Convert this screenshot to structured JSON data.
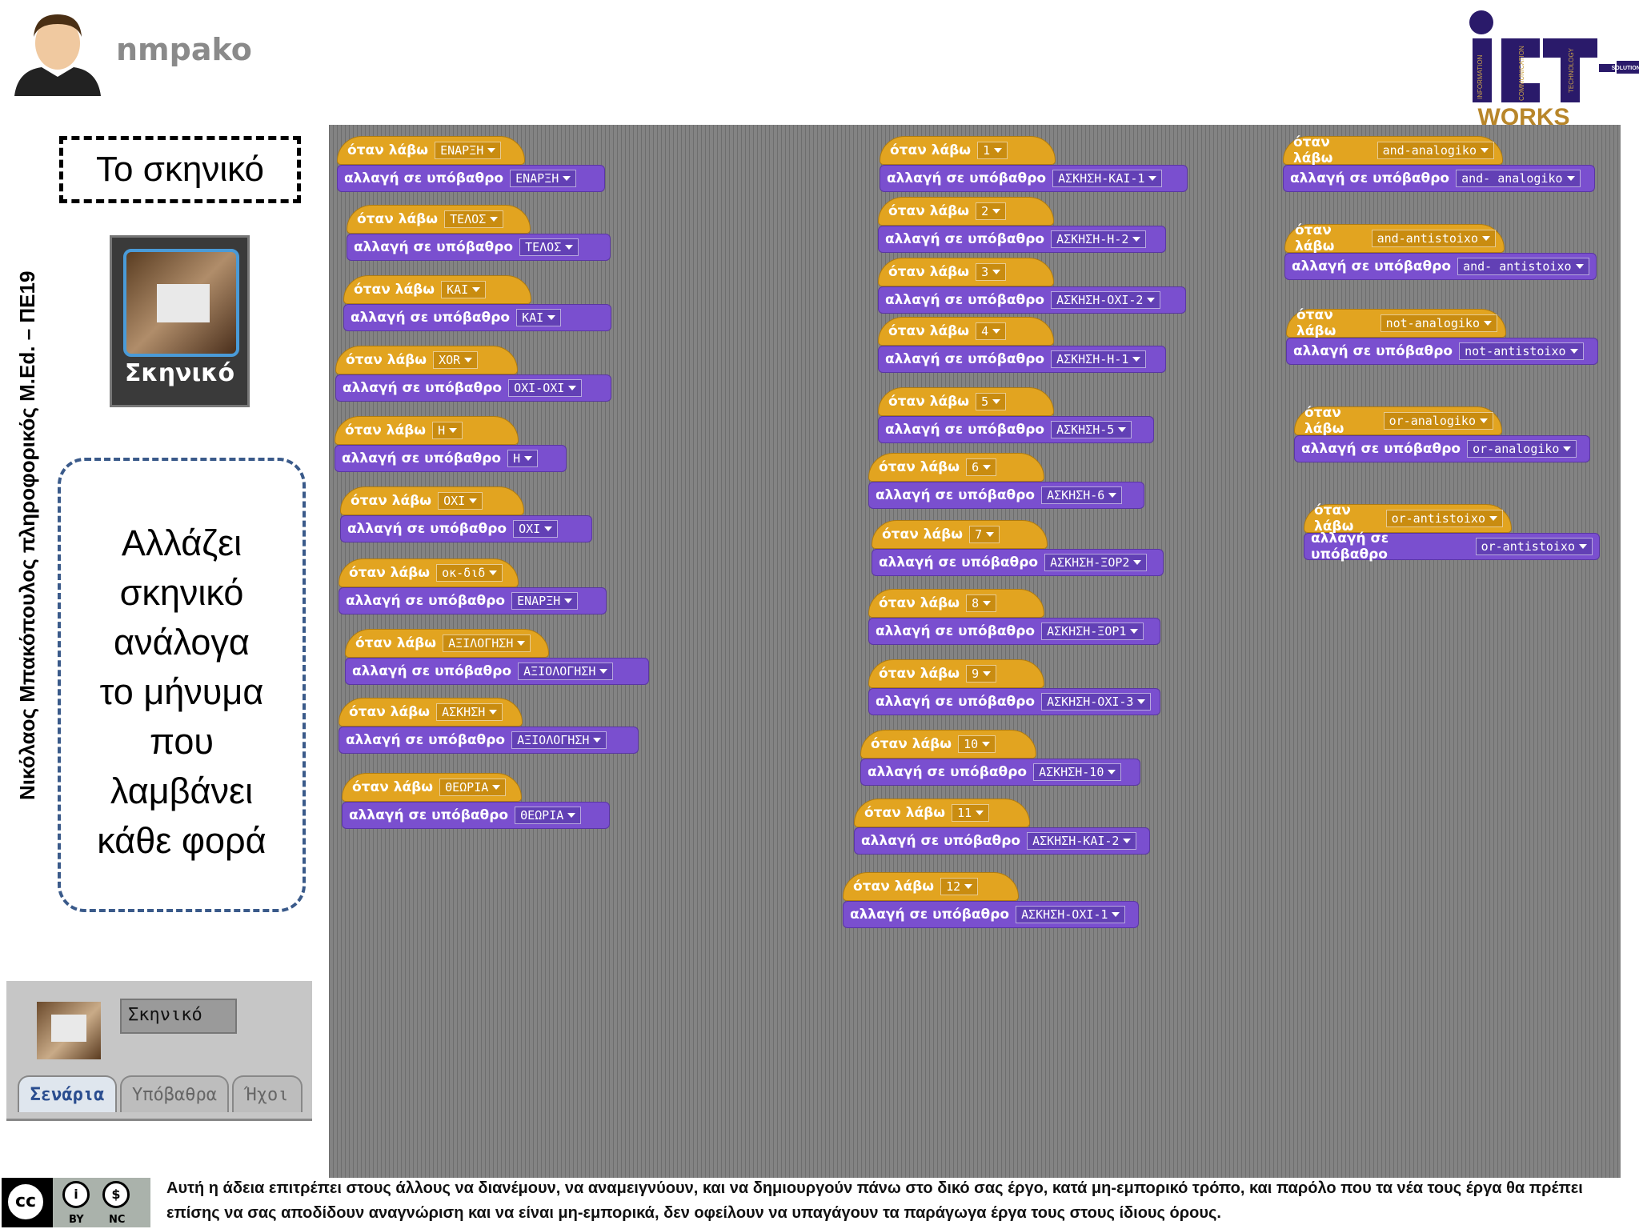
{
  "header": {
    "username": "nmpako",
    "logo": {
      "main": "ICT",
      "sub": "WORKS",
      "side_words": [
        "INFORMATION",
        "COMMUNICATION",
        "TECHNOLOGY"
      ],
      "solutions": "SOLUTIONS"
    }
  },
  "sidebar": {
    "author": "Νικόλαος Μπακόπουλος πληροφορικός M.Ed. – ΠΕ19",
    "stage_title": "Το σκηνικό",
    "stage_label": "Σκηνικό",
    "description_lines": [
      "Αλλάζει",
      "σκηνικό",
      "ανάλογα",
      "το μήνυμα",
      "που",
      "λαμβάνει",
      "κάθε φορά"
    ]
  },
  "sprite_panel": {
    "name": "Σκηνικό",
    "tabs": [
      {
        "label": "Σενάρια",
        "active": true
      },
      {
        "label": "Υπόβαθρα",
        "active": false
      },
      {
        "label": "Ήχοι",
        "active": false
      }
    ]
  },
  "blocks": {
    "when_label": "όταν λάβω",
    "switch_label": "αλλαγή σε υπόβαθρο",
    "column1": [
      {
        "msg": "ΕΝΑΡΞΗ",
        "bg": "ΕΝΑΡΞΗ"
      },
      {
        "msg": "ΤΕΛΟΣ",
        "bg": "ΤΕΛΟΣ"
      },
      {
        "msg": "ΚΑΙ",
        "bg": "ΚΑΙ"
      },
      {
        "msg": "XOR",
        "bg": "ΟΧΙ-ΟΧΙ"
      },
      {
        "msg": "Η",
        "bg": "Η"
      },
      {
        "msg": "ΟΧΙ",
        "bg": "ΟΧΙ"
      },
      {
        "msg": "οκ-διδ",
        "bg": "ΕΝΑΡΞΗ"
      },
      {
        "msg": "ΑΞΙΛΟΓΗΣΗ",
        "bg": "ΑΞΙΟΛΟΓΗΣΗ"
      },
      {
        "msg": "ΑΣΚΗΣΗ",
        "bg": "ΑΞΙΟΛΟΓΗΣΗ"
      },
      {
        "msg": "ΘΕΩΡΙΑ",
        "bg": "ΘΕΩΡΙΑ"
      }
    ],
    "column2": [
      {
        "msg": "1",
        "bg": "ΑΣΚΗΣΗ-ΚΑΙ-1"
      },
      {
        "msg": "2",
        "bg": "ΑΣΚΗΣΗ-Η-2"
      },
      {
        "msg": "3",
        "bg": "ΑΣΚΗΣΗ-ΟΧΙ-2"
      },
      {
        "msg": "4",
        "bg": "ΑΣΚΗΣΗ-Η-1"
      },
      {
        "msg": "5",
        "bg": "ΑΣΚΗΣΗ-5"
      },
      {
        "msg": "6",
        "bg": "ΑΣΚΗΣΗ-6"
      },
      {
        "msg": "7",
        "bg": "ΑΣΚΗΣΗ-ΞΟΡ2"
      },
      {
        "msg": "8",
        "bg": "ΑΣΚΗΣΗ-ΞΟΡ1"
      },
      {
        "msg": "9",
        "bg": "ΑΣΚΗΣΗ-ΟΧΙ-3"
      },
      {
        "msg": "10",
        "bg": "ΑΣΚΗΣΗ-10"
      },
      {
        "msg": "11",
        "bg": "ΑΣΚΗΣΗ-ΚΑΙ-2"
      },
      {
        "msg": "12",
        "bg": "ΑΣΚΗΣΗ-ΟΧΙ-1"
      }
    ],
    "column3": [
      {
        "msg": "and-analogiko",
        "bg": "and- analogiko"
      },
      {
        "msg": "and-antistoixo",
        "bg": "and- antistoixo"
      },
      {
        "msg": "not-analogiko",
        "bg": "not-antistoixo"
      },
      {
        "msg": "or-analogiko",
        "bg": "or-analogiko"
      },
      {
        "msg": "or-antistoixo",
        "bg": "or-antistoixo"
      }
    ]
  },
  "footer": {
    "cc_letters": "cc",
    "cc_by": "BY",
    "cc_nc": "NC",
    "license_text": "Αυτή η άδεια επιτρέπει στους άλλους να διανέμουν, να αναμειγνύουν, και να δημιουργούν πάνω στο δικό σας έργο, κατά μη-εμπορικό τρόπο, και παρόλο που τα νέα τους έργα θα πρέπει επίσης να σας αποδίδουν αναγνώριση και να είναι μη-εμπορικά, δεν οφείλουν να υπαγάγουν τα παράγωγα έργα τους στους ίδιους όρους."
  },
  "colors": {
    "hat": "#e2a420",
    "looks": "#7a4fcf",
    "scripts_bg": "#838383"
  }
}
